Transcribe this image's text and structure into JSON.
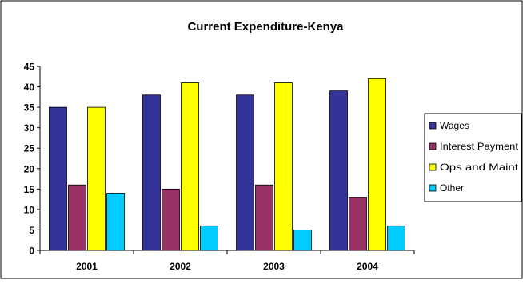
{
  "chart_data": {
    "type": "bar",
    "title": "Current Expenditure-Kenya",
    "xlabel": "",
    "ylabel": "",
    "categories": [
      "2001",
      "2002",
      "2003",
      "2004"
    ],
    "ylim": [
      0,
      45
    ],
    "yticks": [
      0,
      5,
      10,
      15,
      20,
      25,
      30,
      35,
      40,
      45
    ],
    "grid": false,
    "legend_position": "right",
    "series": [
      {
        "name": "Wages",
        "color": "#333399",
        "values": [
          35,
          38,
          38,
          39
        ]
      },
      {
        "name": "Interest Payment",
        "color": "#993366",
        "values": [
          16,
          15,
          16,
          13
        ]
      },
      {
        "name": "Ops and Maint",
        "color": "#ffff00",
        "values": [
          35,
          41,
          41,
          42
        ]
      },
      {
        "name": "Other",
        "color": "#00ccff",
        "values": [
          14,
          6,
          5,
          6
        ]
      }
    ]
  }
}
